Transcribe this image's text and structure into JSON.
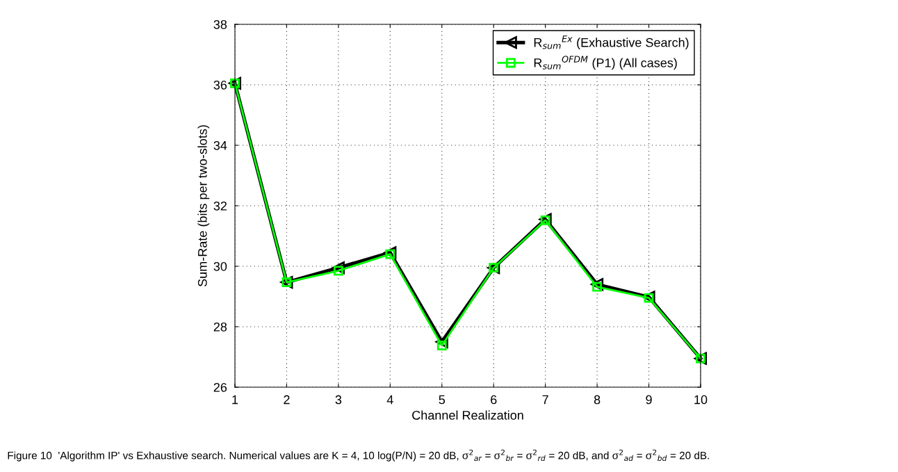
{
  "chart_data": {
    "type": "line",
    "xlabel": "Channel Realization",
    "ylabel": "Sum-Rate (bits per two-slots)",
    "x": [
      1,
      2,
      3,
      4,
      5,
      6,
      7,
      8,
      9,
      10
    ],
    "series": [
      {
        "name": "R$_{sum}$$^{Ex}$ (Exhaustive Search)",
        "color": "#000000",
        "marker": "triangle",
        "values": [
          36.05,
          29.47,
          29.95,
          30.45,
          27.5,
          29.95,
          31.55,
          29.4,
          28.98,
          26.95
        ]
      },
      {
        "name": "R$_{sum}$$^{OFDM}$ (P1) (All cases)",
        "color": "#00ff00",
        "marker": "square",
        "values": [
          36.05,
          29.47,
          29.85,
          30.4,
          27.38,
          29.95,
          31.52,
          29.32,
          28.95,
          26.95
        ]
      }
    ],
    "xlim": [
      1,
      10
    ],
    "xticks": [
      1,
      2,
      3,
      4,
      5,
      6,
      7,
      8,
      9,
      10
    ],
    "ylim": [
      26,
      38
    ],
    "yticks": [
      26,
      28,
      30,
      32,
      34,
      36,
      38
    ],
    "grid": true,
    "legend": "top right",
    "line_style": "solid",
    "annotations": [
      "Figure 10  'Algorithm IP' vs Exhaustive search. Numerical values are K = 4, 10 log(P/N) = 20 dB, σ$^{2}$$_{ar}$ = σ$^{2}$$_{br}$ = σ$^{2}$$_{rd}$ = 20 dB, and σ$^{2}$$_{ad}$ = σ$^{2}$$_{bd}$ = 20 dB."
    ]
  }
}
